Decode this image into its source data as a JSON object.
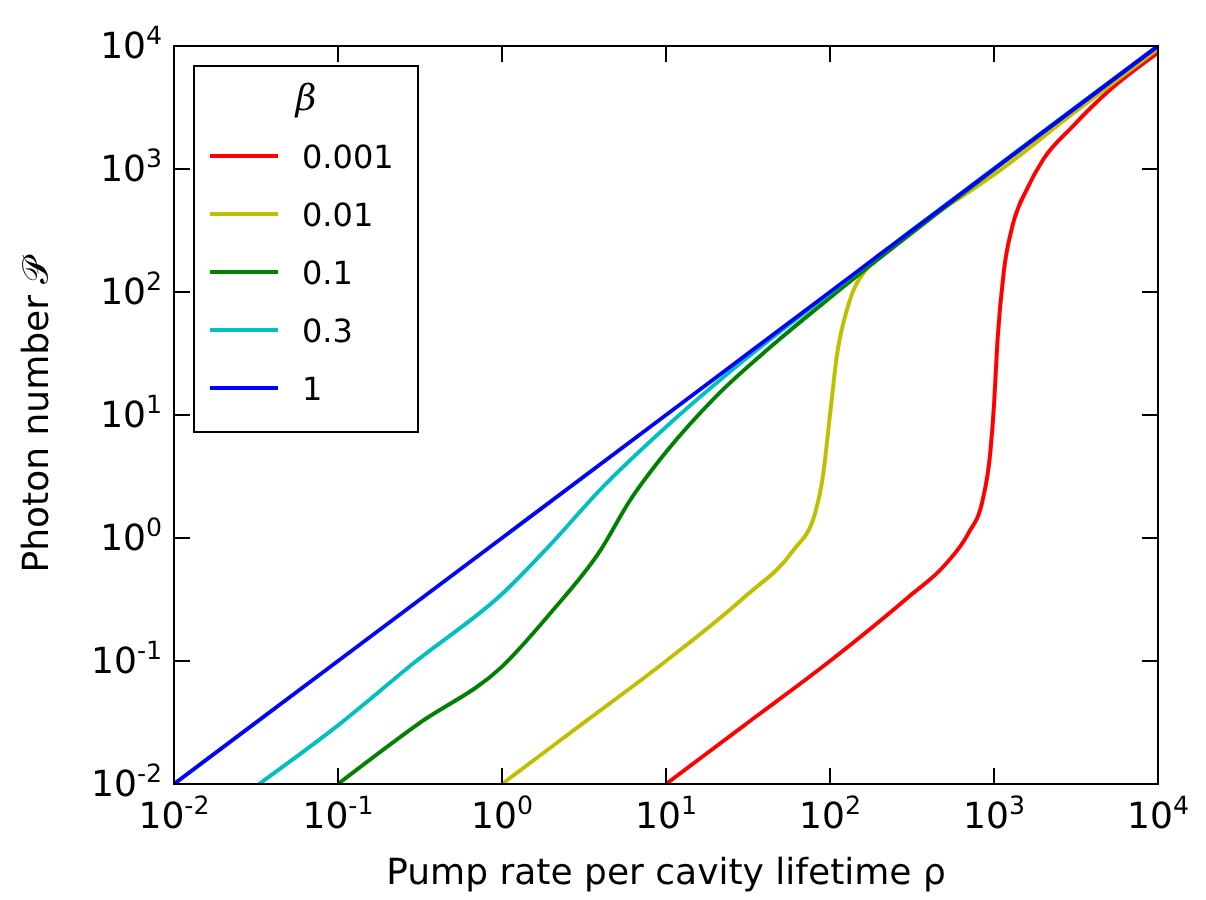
{
  "chart_data": {
    "type": "line",
    "xlabel": "Pump rate per cavity lifetime ρ",
    "ylabel": "Photon number 𝒫",
    "legend_title": "β",
    "log": "xy",
    "grid": false,
    "legend": "top left",
    "line_style": "solid",
    "xlim": [
      0.01,
      10000
    ],
    "ylim": [
      0.01,
      10000
    ],
    "xticks": [
      {
        "value": 0.01,
        "label": "10$^{-2}$"
      },
      {
        "value": 0.1,
        "label": "10$^{-1}$"
      },
      {
        "value": 1,
        "label": "10$^{0}$"
      },
      {
        "value": 10,
        "label": "10$^{1}$"
      },
      {
        "value": 100,
        "label": "10$^{2}$"
      },
      {
        "value": 1000,
        "label": "10$^{3}$"
      },
      {
        "value": 10000,
        "label": "10$^{4}$"
      }
    ],
    "yticks": [
      {
        "value": 0.01,
        "label": "10$^{-2}$"
      },
      {
        "value": 0.1,
        "label": "10$^{-1}$"
      },
      {
        "value": 1,
        "label": "10$^{0}$"
      },
      {
        "value": 10,
        "label": "10$^{1}$"
      },
      {
        "value": 100,
        "label": "10$^{2}$"
      },
      {
        "value": 1000,
        "label": "10$^{3}$"
      },
      {
        "value": 10000,
        "label": "10$^{4}$"
      }
    ],
    "series": [
      {
        "name": "0.001",
        "color": "#ff0000",
        "x": [
          10,
          30,
          100,
          300,
          500,
          700,
          850,
          950,
          1000,
          1050,
          1150,
          1300,
          1600,
          2000,
          3000,
          5000,
          10000
        ],
        "values": [
          0.01,
          0.03,
          0.1,
          0.33,
          0.6,
          1.1,
          2,
          5,
          12,
          40,
          150,
          350,
          700,
          1200,
          2200,
          4300,
          8800
        ]
      },
      {
        "name": "0.01",
        "color": "#bfbf00",
        "x": [
          1,
          3,
          10,
          30,
          60,
          80,
          90,
          100,
          110,
          130,
          170,
          250,
          400,
          700,
          1000,
          3000,
          10000
        ],
        "values": [
          0.01,
          0.03,
          0.1,
          0.33,
          0.8,
          1.5,
          3,
          10,
          30,
          80,
          160,
          250,
          400,
          650,
          900,
          2800,
          9500
        ]
      },
      {
        "name": "0.1",
        "color": "#008000",
        "x": [
          0.1,
          0.3,
          1,
          2,
          4,
          6,
          10,
          20,
          50,
          100,
          1000,
          10000
        ],
        "values": [
          0.01,
          0.03,
          0.09,
          0.25,
          0.8,
          2,
          5,
          14,
          42,
          90,
          990,
          9990
        ]
      },
      {
        "name": "0.3",
        "color": "#00bfbf",
        "x": [
          0.033,
          0.1,
          0.3,
          1,
          2,
          4,
          10,
          30,
          100,
          10000
        ],
        "values": [
          0.01,
          0.03,
          0.1,
          0.35,
          0.9,
          2.5,
          8,
          28,
          98,
          10000
        ]
      },
      {
        "name": "1",
        "color": "#0000ff",
        "x": [
          0.01,
          1,
          100,
          10000
        ],
        "values": [
          0.01,
          1,
          100,
          10000
        ]
      }
    ]
  }
}
